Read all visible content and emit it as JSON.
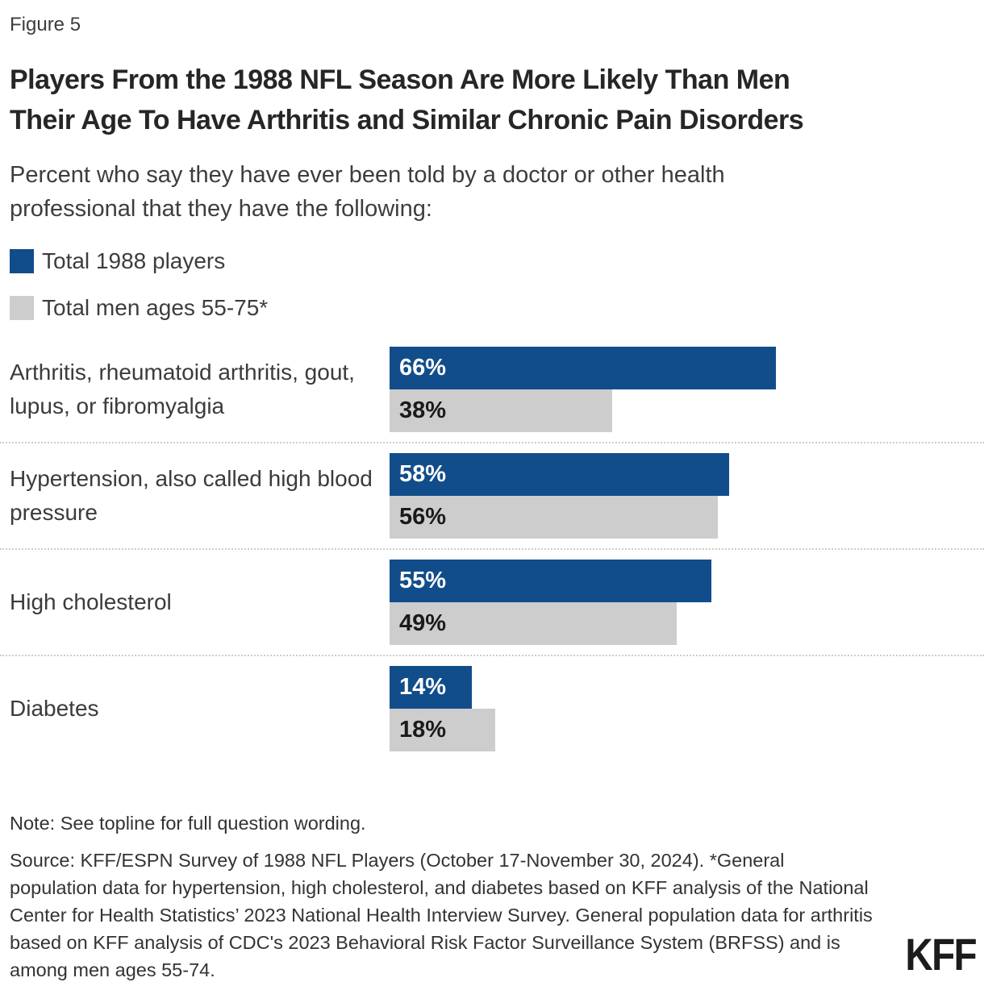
{
  "figure_label": "Figure 5",
  "title_lines": [
    "Players From the 1988 NFL Season Are More Likely Than Men",
    "Their Age To Have Arthritis and Similar Chronic Pain Disorders"
  ],
  "subtitle_lines": [
    "Percent who say they have ever been told by a doctor or other health",
    "professional that they have the following:"
  ],
  "legend": [
    {
      "label": "Total 1988 players",
      "color": "#114D8A"
    },
    {
      "label": "Total men ages 55-75*",
      "color": "#CDCDCD"
    }
  ],
  "chart_data": {
    "type": "bar",
    "orientation": "horizontal",
    "title": "Players From the 1988 NFL Season Are More Likely Than Men Their Age To Have Arthritis and Similar Chronic Pain Disorders",
    "subtitle": "Percent who say they have ever been told by a doctor or other health professional that they have the following:",
    "categories": [
      "Arthritis, rheumatoid arthritis, gout, lupus, or fibromyalgia",
      "Hypertension, also called high blood pressure",
      "High cholesterol",
      "Diabetes"
    ],
    "series": [
      {
        "name": "Total 1988 players",
        "color": "#114D8A",
        "values": [
          66,
          58,
          55,
          14
        ]
      },
      {
        "name": "Total men ages 55-75*",
        "color": "#CDCDCD",
        "values": [
          38,
          56,
          49,
          18
        ]
      }
    ],
    "value_suffix": "%",
    "xlim": [
      0,
      100
    ],
    "grid": false,
    "legend_position": "top-left"
  },
  "note": "Note: See topline for full question wording.",
  "source": "Source: KFF/ESPN Survey of 1988 NFL Players (October 17-November 30, 2024). *General population data for hypertension, high cholesterol, and diabetes based on KFF analysis of the National Center for Health Statistics’ 2023 National Health Interview Survey. General population data for arthritis based on KFF analysis of CDC's 2023 Behavioral Risk Factor Surveillance System (BRFSS) and is among men ages 55-74.",
  "logo": "KFF",
  "colors": {
    "players_bar": "#114D8A",
    "men_bar": "#CDCDCD",
    "divider": "#CDCDCD",
    "title_text": "#262626",
    "body_text": "#333333",
    "background": "#FFFFFF"
  }
}
